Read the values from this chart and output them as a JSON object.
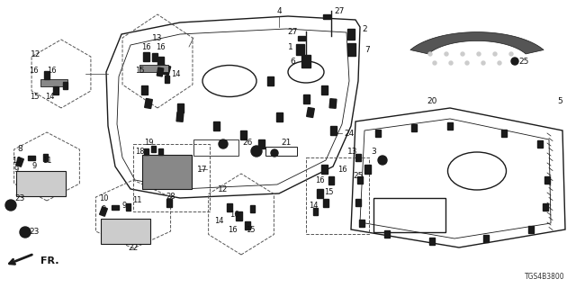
{
  "bg_color": "#ffffff",
  "diagram_code": "TGS4B3800",
  "figsize": [
    6.4,
    3.2
  ],
  "dpi": 100
}
